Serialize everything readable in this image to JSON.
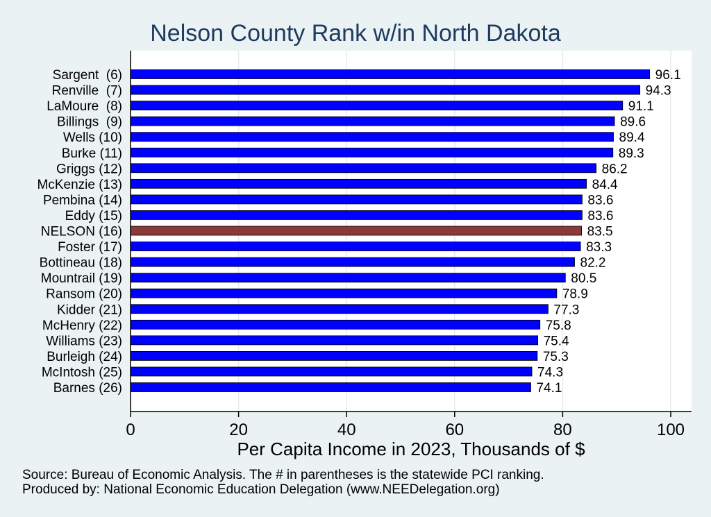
{
  "chart_data": {
    "type": "bar",
    "orientation": "horizontal",
    "title": "Nelson County Rank w/in North Dakota",
    "xlabel": "Per Capita Income in 2023, Thousands of $",
    "ylabel": "",
    "xlim": [
      0,
      100
    ],
    "xticks": [
      "0",
      "20",
      "40",
      "60",
      "80",
      "100"
    ],
    "categories": [
      "Sargent  (6)",
      "Renville  (7)",
      "LaMoure  (8)",
      "Billings  (9)",
      "Wells (10)",
      "Burke (11)",
      "Griggs (12)",
      "McKenzie (13)",
      "Pembina (14)",
      "Eddy (15)",
      "NELSON (16)",
      "Foster (17)",
      "Bottineau (18)",
      "Mountrail (19)",
      "Ransom (20)",
      "Kidder (21)",
      "McHenry (22)",
      "Williams (23)",
      "Burleigh (24)",
      "McIntosh (25)",
      "Barnes (26)"
    ],
    "values": [
      96.1,
      94.3,
      91.1,
      89.6,
      89.4,
      89.3,
      86.2,
      84.4,
      83.6,
      83.6,
      83.5,
      83.3,
      82.2,
      80.5,
      78.9,
      77.3,
      75.8,
      75.4,
      75.3,
      74.3,
      74.1
    ],
    "value_labels": [
      "96.1",
      "94.3",
      "91.1",
      "89.6",
      "89.4",
      "89.3",
      "86.2",
      "84.4",
      "83.6",
      "83.6",
      "83.5",
      "83.3",
      "82.2",
      "80.5",
      "78.9",
      "77.3",
      "75.8",
      "75.4",
      "75.3",
      "74.3",
      "74.1"
    ],
    "highlight_index": 10,
    "bar_color": "#0000ff",
    "highlight_color": "#8b3a3a",
    "grid": true,
    "notes": [
      "Source: Bureau of Economic Analysis. The # in parentheses is the statewide PCI ranking.",
      "Produced by: National Economic Education Delegation (www.NEEDelegation.org)"
    ]
  }
}
